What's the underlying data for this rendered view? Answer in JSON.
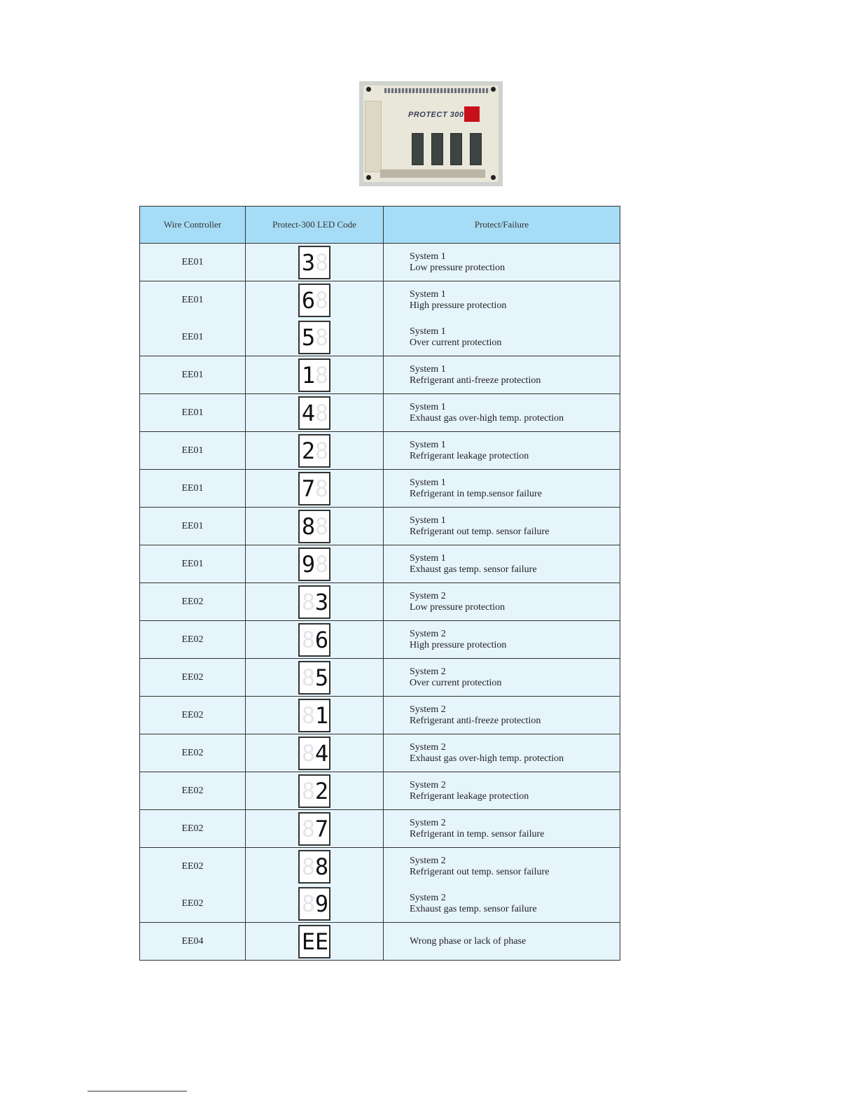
{
  "photo": {
    "label": "PROTECT 300",
    "led_color": "#c8101a"
  },
  "table": {
    "headers": [
      "Wire Controller",
      "Protect-300 LED Code",
      "Protect/Failure"
    ],
    "colors": {
      "header_bg": "#a6dcf5",
      "row_bg": "#e6f4fc",
      "border": "#333333"
    },
    "groups": [
      [
        {
          "controller": "EE01",
          "led": [
            "3",
            "8"
          ],
          "dim": 1,
          "system": "System 1",
          "failure": "Low pressure protection"
        }
      ],
      [
        {
          "controller": "EE01",
          "led": [
            "6",
            "8"
          ],
          "dim": 1,
          "system": "System 1",
          "failure": "High pressure protection"
        },
        {
          "controller": "EE01",
          "led": [
            "5",
            "8"
          ],
          "dim": 1,
          "system": "System 1",
          "failure": "Over current protection"
        }
      ],
      [
        {
          "controller": "EE01",
          "led": [
            "1",
            "8"
          ],
          "dim": 1,
          "system": "System 1",
          "failure": "Refrigerant anti-freeze protection"
        }
      ],
      [
        {
          "controller": "EE01",
          "led": [
            "4",
            "8"
          ],
          "dim": 1,
          "system": "System 1",
          "failure": "Exhaust gas over-high temp. protection"
        }
      ],
      [
        {
          "controller": "EE01",
          "led": [
            "2",
            "8"
          ],
          "dim": 1,
          "system": "System 1",
          "failure": "Refrigerant leakage protection"
        }
      ],
      [
        {
          "controller": "EE01",
          "led": [
            "7",
            "8"
          ],
          "dim": 1,
          "system": "System 1",
          "failure": "Refrigerant in temp.sensor failure"
        }
      ],
      [
        {
          "controller": "EE01",
          "led": [
            "8",
            "8"
          ],
          "dim": 1,
          "system": "System 1",
          "failure": "Refrigerant out temp. sensor failure"
        }
      ],
      [
        {
          "controller": "EE01",
          "led": [
            "9",
            "8"
          ],
          "dim": 1,
          "system": "System 1",
          "failure": "Exhaust gas temp. sensor failure"
        }
      ],
      [
        {
          "controller": "EE02",
          "led": [
            "8",
            "3"
          ],
          "dim": 0,
          "system": "System 2",
          "failure": "Low pressure protection"
        }
      ],
      [
        {
          "controller": "EE02",
          "led": [
            "8",
            "6"
          ],
          "dim": 0,
          "system": "System 2",
          "failure": "High pressure protection"
        }
      ],
      [
        {
          "controller": "EE02",
          "led": [
            "8",
            "5"
          ],
          "dim": 0,
          "system": "System 2",
          "failure": "Over current protection"
        }
      ],
      [
        {
          "controller": "EE02",
          "led": [
            "8",
            "1"
          ],
          "dim": 0,
          "system": "System 2",
          "failure": "Refrigerant anti-freeze protection"
        }
      ],
      [
        {
          "controller": "EE02",
          "led": [
            "8",
            "4"
          ],
          "dim": 0,
          "system": "System 2",
          "failure": "Exhaust gas over-high temp. protection"
        }
      ],
      [
        {
          "controller": "EE02",
          "led": [
            "8",
            "2"
          ],
          "dim": 0,
          "system": "System 2",
          "failure": "Refrigerant leakage protection"
        }
      ],
      [
        {
          "controller": "EE02",
          "led": [
            "8",
            "7"
          ],
          "dim": 0,
          "system": "System 2",
          "failure": "Refrigerant in temp. sensor failure"
        }
      ],
      [
        {
          "controller": "EE02",
          "led": [
            "8",
            "8"
          ],
          "dim": 0,
          "system": "System 2",
          "failure": "Refrigerant out temp. sensor failure"
        },
        {
          "controller": "EE02",
          "led": [
            "8",
            "9"
          ],
          "dim": 0,
          "system": "System 2",
          "failure": "Exhaust gas temp. sensor failure"
        }
      ],
      [
        {
          "controller": "EE04",
          "led": [
            "E",
            "E"
          ],
          "dim": null,
          "system": "",
          "failure": "Wrong phase or lack of phase"
        }
      ]
    ]
  }
}
